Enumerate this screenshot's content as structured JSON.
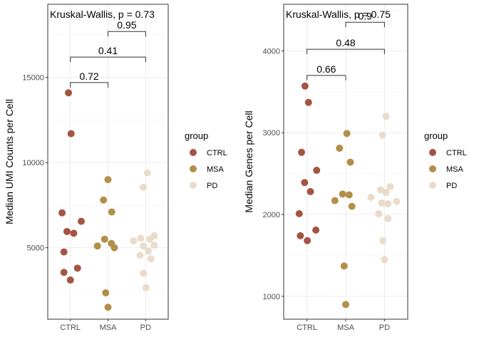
{
  "chart_data": [
    {
      "type": "scatter",
      "categories": [
        "CTRL",
        "MSA",
        "PD"
      ],
      "ylabel": "Median UMI Counts per Cell",
      "yticks": [
        5000,
        10000,
        15000
      ],
      "ytick_labels": [
        "5000",
        "10000",
        "15000"
      ],
      "ylim": [
        800,
        19300
      ],
      "test_label": "Kruskal-Wallis, p = 0.73",
      "comparisons": [
        {
          "from": "CTRL",
          "to": "MSA",
          "label": "0.72",
          "y": 14700
        },
        {
          "from": "CTRL",
          "to": "PD",
          "label": "0.41",
          "y": 16200
        },
        {
          "from": "MSA",
          "to": "PD",
          "label": "0.95",
          "y": 17700
        }
      ],
      "points": {
        "CTRL": [
          {
            "x": -0.05,
            "y": 14100
          },
          {
            "x": 0.02,
            "y": 11700
          },
          {
            "x": -0.22,
            "y": 7050
          },
          {
            "x": 0.29,
            "y": 6550
          },
          {
            "x": -0.09,
            "y": 5950
          },
          {
            "x": 0.09,
            "y": 5850
          },
          {
            "x": -0.17,
            "y": 4750
          },
          {
            "x": 0.19,
            "y": 3800
          },
          {
            "x": -0.17,
            "y": 3550
          },
          {
            "x": 0.0,
            "y": 3100
          }
        ],
        "MSA": [
          {
            "x": 0.0,
            "y": 9000
          },
          {
            "x": -0.12,
            "y": 7800
          },
          {
            "x": 0.1,
            "y": 7100
          },
          {
            "x": -0.09,
            "y": 5500
          },
          {
            "x": 0.09,
            "y": 5250
          },
          {
            "x": -0.28,
            "y": 5100
          },
          {
            "x": 0.17,
            "y": 5000
          },
          {
            "x": -0.06,
            "y": 2350
          },
          {
            "x": 0.0,
            "y": 1500
          }
        ],
        "PD": [
          {
            "x": 0.05,
            "y": 9400
          },
          {
            "x": -0.06,
            "y": 8550
          },
          {
            "x": 0.23,
            "y": 5700
          },
          {
            "x": -0.13,
            "y": 5550
          },
          {
            "x": 0.11,
            "y": 5500
          },
          {
            "x": -0.32,
            "y": 5400
          },
          {
            "x": 0.23,
            "y": 5150
          },
          {
            "x": -0.06,
            "y": 5100
          },
          {
            "x": 0.07,
            "y": 4800
          },
          {
            "x": -0.15,
            "y": 4550
          },
          {
            "x": 0.14,
            "y": 4350
          },
          {
            "x": -0.06,
            "y": 3500
          },
          {
            "x": 0.01,
            "y": 2650
          }
        ]
      }
    },
    {
      "type": "scatter",
      "categories": [
        "CTRL",
        "MSA",
        "PD"
      ],
      "ylabel": "Median Genes per Cell",
      "yticks": [
        1000,
        2000,
        3000,
        4000
      ],
      "ytick_labels": [
        "1000",
        "2000",
        "3000",
        "4000"
      ],
      "ylim": [
        720,
        4570
      ],
      "test_label": "Kruskal-Wallis, p = 0.75",
      "comparisons": [
        {
          "from": "CTRL",
          "to": "MSA",
          "label": "0.66",
          "y": 3700
        },
        {
          "from": "CTRL",
          "to": "PD",
          "label": "0.48",
          "y": 4020
        },
        {
          "from": "MSA",
          "to": "PD",
          "label": "0.9",
          "y": 4350
        }
      ],
      "points": {
        "CTRL": [
          {
            "x": -0.05,
            "y": 3570
          },
          {
            "x": 0.04,
            "y": 3370
          },
          {
            "x": -0.14,
            "y": 2760
          },
          {
            "x": 0.25,
            "y": 2540
          },
          {
            "x": -0.06,
            "y": 2390
          },
          {
            "x": 0.09,
            "y": 2280
          },
          {
            "x": -0.2,
            "y": 2010
          },
          {
            "x": 0.23,
            "y": 1810
          },
          {
            "x": -0.17,
            "y": 1740
          },
          {
            "x": 0.01,
            "y": 1680
          }
        ],
        "MSA": [
          {
            "x": 0.03,
            "y": 2990
          },
          {
            "x": -0.16,
            "y": 2810
          },
          {
            "x": 0.12,
            "y": 2640
          },
          {
            "x": -0.08,
            "y": 2250
          },
          {
            "x": 0.09,
            "y": 2240
          },
          {
            "x": -0.28,
            "y": 2170
          },
          {
            "x": 0.16,
            "y": 2100
          },
          {
            "x": -0.04,
            "y": 1370
          },
          {
            "x": 0.0,
            "y": 900
          }
        ],
        "PD": [
          {
            "x": 0.04,
            "y": 3200
          },
          {
            "x": -0.05,
            "y": 2970
          },
          {
            "x": 0.15,
            "y": 2340
          },
          {
            "x": -0.1,
            "y": 2300
          },
          {
            "x": 0.04,
            "y": 2270
          },
          {
            "x": -0.35,
            "y": 2210
          },
          {
            "x": 0.31,
            "y": 2160
          },
          {
            "x": -0.07,
            "y": 2140
          },
          {
            "x": 0.09,
            "y": 2130
          },
          {
            "x": -0.15,
            "y": 2010
          },
          {
            "x": 0.09,
            "y": 1950
          },
          {
            "x": -0.04,
            "y": 1680
          },
          {
            "x": 0.0,
            "y": 1450
          }
        ]
      }
    }
  ],
  "legend": {
    "title": "group",
    "items": [
      {
        "label": "CTRL",
        "color": "#A55443"
      },
      {
        "label": "MSA",
        "color": "#B28F4A"
      },
      {
        "label": "PD",
        "color": "#EADBCA"
      }
    ]
  },
  "colors": {
    "panel_border": "#333333",
    "grid_major": "#ebebeb",
    "grid_minor": "#f4f4f4",
    "tick_text": "#4d4d4d"
  }
}
